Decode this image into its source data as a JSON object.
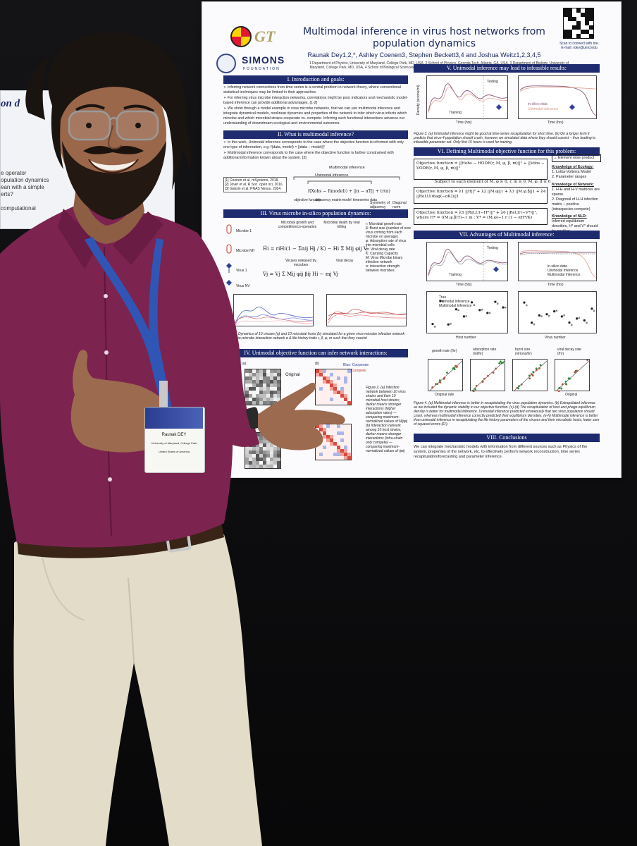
{
  "poster": {
    "title": "Multimodal inference in virus host networks from population dynamics",
    "authors": "Raunak Dey1,2,*, Ashley Coenen3, Stephen Beckett3,4 and Joshua Weitz1,2,3,4,5",
    "affiliations": "1 Department of Physics, University of Maryland, College Park, MD, USA, 2 School of Physics, Georgia Tech, Atlanta, GA, USA, 3 Department of Biology, University of Maryland, College Park, MD, USA, 4 School of Biological Sciences, Georgia Institute of Technology, GA, USA, 5 Institut de Biologie, École Normale Supérieure, Paris, France",
    "logo_gt": "GT",
    "logo_simons": "SIMONS",
    "logo_simons_sub": "FOUNDATION",
    "qr_caption": "Scan to connect with me.",
    "email": "E-mail: rdey@umd.edu",
    "sections": {
      "s1": "I. Introduction and goals:",
      "s2": "II. What is multimodal inference?",
      "s3": "III. Virus microbe in-silico population dynamics:",
      "s4": "IV. Unimodal objective function can infer network interactions:",
      "s5": "V. Unimodal inference may lead to infeasible results:",
      "s6": "VI. Defining Multimodal objective function for this problem:",
      "s7": "VII. Advantages of Multimodal inference:",
      "s8": "VIII. Conclusions"
    },
    "intro_bullets": [
      "➢ Inferring network connections from time series is a central problem in network theory, where conventional statistical techniques may be limited in their approaches.",
      "➢ For inferring virus microbe interaction networks, correlations might be poor indicators and mechanistic model-based inference can provide additional advantages. [1-2]",
      "➢ We show through a model example in virus microbe networks, that we can use multimodal inference and integrate dynamical models, nonlinear dynamics and properties of the network to infer which virus infects which microbe and which microbial strains cooperate vs. compete. Inferring such functional interactions advance our understanding of downstream ecological and environmental outcomes."
    ],
    "mm_bullets": [
      "➢ In this work, Unimodal inference corresponds to the case where the objective function is informed with only one type of information, e.g. f(data, model) = ||data − model||²",
      "➢ Multimodal inference corresponds to the case where the objective function is further constrained with additional information known about the system. [3]"
    ],
    "references": [
      "[1] Coenen et al, mSystems, 2018.",
      "[2] Jover et al, R.Soc. open sci, 2016.",
      "[3] Gaksin et al, PNAS Nexus, 2024."
    ],
    "mm_diagram": {
      "top": "Multimodal inference",
      "mid": "Unimodal inference",
      "labels": [
        "objective function",
        "adjacency matrix",
        "model",
        "timeseries data",
        "Symmetry of adjacency matrix",
        "Diagonal norm"
      ]
    },
    "dyn_labels": {
      "microbe1": "Microbe 1",
      "microbeN": "Microbe NH",
      "virus1": "Virus 1",
      "virusN": "Virus NV",
      "growth_head": "Microbial growth and competition/co-operation",
      "death_head": "Microbial death by viral killing",
      "release_head": "Viruses released by microbes",
      "decay_head": "Viral decay",
      "legend": [
        "r: Microbial growth rate",
        "β: Burst size (number of new virus coming from each microbe on average)",
        "φ: Adsorption rate of virus into microbial cells",
        "m: Viral decay rate",
        "K: Carrying Capacity",
        "M: Virus Microbe binary infection network",
        "α: interaction strength between microbes"
      ]
    },
    "fig1_caption": "Figure 1. Dynamics of 10 viruses (a) and 10 microbial hosts (b) simulated for a given virus-microbe infection network M, microbe-microbe interaction network α & life-history traits r, β, φ, m such that they coexist",
    "fig2_labels": {
      "a": "(a)",
      "b": "(b)",
      "original": "Original",
      "cooperate": "Blue: Cooperate",
      "compete": "Red: Compete"
    },
    "fig2_caption": "Figure 2. (a) Infection network between 10 virus strains and their 10 microbial host strains; darker means stronger interactions (higher adsorption rates) — comparing maximum-normalized values of Mijφij (b) Interaction network among 10 host strains, darker means stronger interactions (intra-strain only compete) — comparing maximum-normalized values of rjαij",
    "fig3_caption": "Figure 3. (a) Unimodal inference might be good at time-series recapitulation for short time. (b) On a longer term it predicts that virus-4 population should crash, however we simulated data where they should coexist – thus leading to infeasible parameter set. Only first 15 hours is used for training.",
    "fig3_labels": {
      "testing": "Testing",
      "training": "Training",
      "insilico": "in-silico data",
      "unimodal": "Unimodal inference",
      "time": "Time (hrs)",
      "density": "Density (virions/ml)"
    },
    "obj_eq": [
      "Objective function = ||Hobs − HODE(r, M, φ, β, m)||² + ||Vobs − VODE(r, M, φ, β, m)||²",
      "Subject to each element of M, φ ≥ 0, r, m ≥ 0, M, φ, β ≥ 0",
      "Objective function = λ1 ||H||² + λ2 ||M.φ||1 + λ3 ||M.φ.β||1 + λ4 ||ReLU(diag(−αK))||1",
      "Objective function = λ5 ||ReLU(−H*)||² + λ6 ||ReLU(−V*)||², where H* = ((M.φ.β)T)−1 m ; V* = (M.φ)−1 r (1 − αH*/K)"
    ],
    "knowledge": [
      "→ Element wise product",
      "Knowledge of Ecology:",
      "1. Lotka-Volterra Model",
      "2. Parameter ranges",
      "Knowledge of Network:",
      "1. H-H and H-V matrices are sparse.",
      "2. Diagonal of H-H infection matrix – positive (intraspecies compete)",
      "Knowledge of NLD:",
      "Inferred equilibrium densities, H* and V* should be positive."
    ],
    "fig4_labels": {
      "true": "True",
      "unimodal": "Unimodal Inference",
      "multimodal": "Multimodal Inference",
      "host_number": "Host number",
      "virus_number": "Virus number",
      "growth": "growth rate (/hr)",
      "adsorption": "adsorption rate (ml/hr)",
      "burst": "burst size (virions/hr)",
      "decay": "viral decay rate (/hr)",
      "original_rate": "Original rate",
      "original": "Original",
      "reconstructed": "Reconstructed"
    },
    "fig4_caption": "Figure 4. (a) Multimodal inference is better in recapitulating the virus population dynamics. (b) Extrapolated inference as we included the dynamic stability in our objective function. (c)-(d) The recapitulation of host and phage equilibrium density is better for multimodal inference. Unimodal inference predicted erroneously that two virus population should crash, whereas multimodal inference correctly predicted their equilibrium densities. (e-h) Multimodal inference is better than unimodal inference in recapitulating the life history parameters of the viruses and their microbials hosts, lower sum of squared errors (E²).",
    "conclusions": "We can integrate mechanistic models with information from different sources such as Physics of the system, properties of the network, etc. to effectively perform network reconstruction, time series recapitulation/forecasting and parameter inference."
  },
  "badge": {
    "name": "Raunak DEY",
    "org": "University of Maryland, College Park",
    "country": "United States of America"
  },
  "left_poster": {
    "heading": "on d",
    "lines": [
      "e operator",
      "opulation dynamics",
      "ean with a simple",
      "erts?",
      "computational"
    ]
  },
  "colors": {
    "poster_header": "#1e2b6e",
    "shirt": "#7d2350",
    "lanyard": "#2f56b5",
    "trousers": "#e2dcc9",
    "wall": "#0d0d0f"
  }
}
